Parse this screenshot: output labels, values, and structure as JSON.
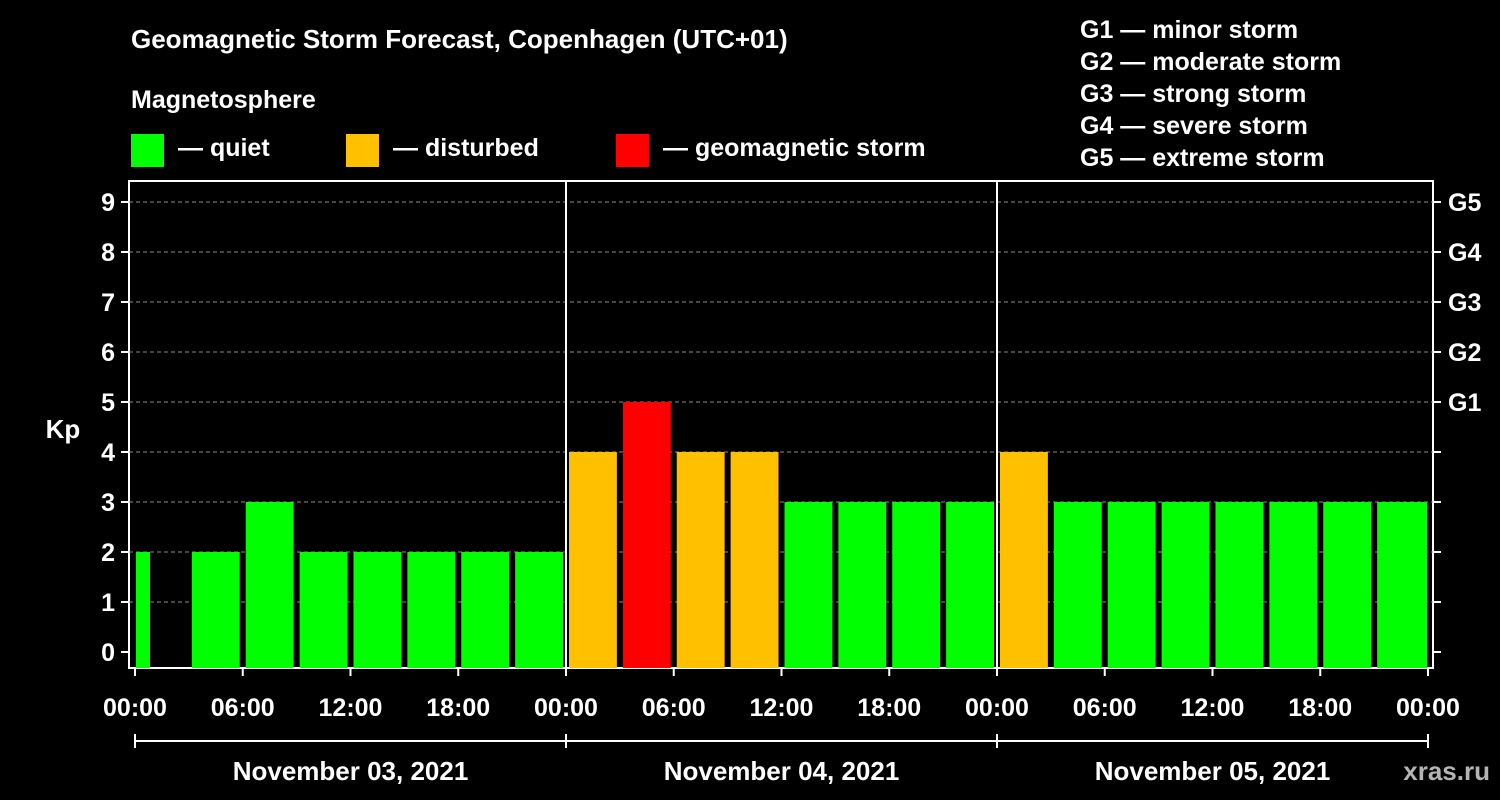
{
  "title": "Geomagnetic Storm Forecast, Copenhagen (UTC+01)",
  "legend": {
    "heading": "Magnetosphere",
    "items": [
      {
        "label": "— quiet",
        "color": "#00ff00"
      },
      {
        "label": "— disturbed",
        "color": "#ffc000"
      },
      {
        "label": "— geomagnetic storm",
        "color": "#ff0000"
      }
    ]
  },
  "g_scale": [
    "G1 — minor storm",
    "G2 — moderate storm",
    "G3 — strong storm",
    "G4 — severe storm",
    "G5 — extreme storm"
  ],
  "watermark": "xras.ru",
  "chart_data": {
    "type": "bar",
    "ylabel": "Kp",
    "ylim": [
      0,
      9
    ],
    "y_ticks": [
      "0",
      "1",
      "2",
      "3",
      "4",
      "5",
      "6",
      "7",
      "8",
      "9"
    ],
    "right_ticks": [
      {
        "value": 5,
        "label": "G1"
      },
      {
        "value": 6,
        "label": "G2"
      },
      {
        "value": 7,
        "label": "G3"
      },
      {
        "value": 8,
        "label": "G4"
      },
      {
        "value": 9,
        "label": "G5"
      }
    ],
    "x_tick_labels": [
      "00:00",
      "06:00",
      "12:00",
      "18:00",
      "00:00",
      "06:00",
      "12:00",
      "18:00",
      "00:00",
      "06:00",
      "12:00",
      "18:00",
      "00:00"
    ],
    "days": [
      "November 03, 2021",
      "November 04, 2021",
      "November 05, 2021"
    ],
    "values": [
      2,
      2,
      3,
      2,
      2,
      2,
      2,
      2,
      4,
      5,
      4,
      4,
      3,
      3,
      3,
      3,
      4,
      3,
      3,
      3,
      3,
      3,
      3,
      3
    ],
    "colors": {
      "quiet": "#00ff00",
      "disturbed": "#ffc000",
      "storm": "#ff0000"
    },
    "grid": true
  }
}
